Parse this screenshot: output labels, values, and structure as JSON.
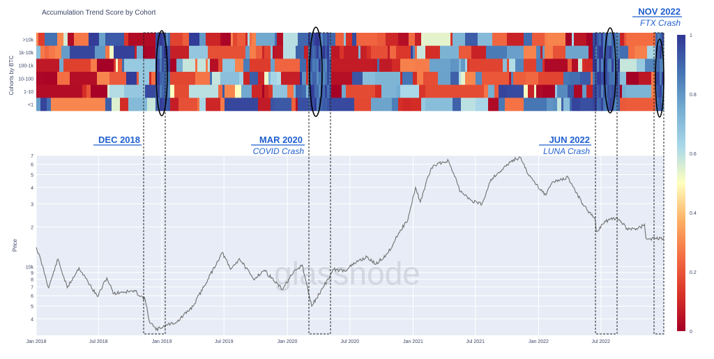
{
  "chart_data": [
    {
      "type": "heatmap",
      "title": "Accumulation Trend Score by Cohort",
      "ylabel": "Cohorts by BTC",
      "rows": [
        ">10k",
        "1k-10k",
        "100-1k",
        "10-100",
        "1-10",
        "<1"
      ],
      "x_range": [
        "2018-01-01",
        "2022-12-31"
      ],
      "colorbar": {
        "min": 0,
        "max": 1,
        "ticks": [
          "0",
          "0.2",
          "0.4",
          "0.6",
          "0.8",
          "1"
        ]
      },
      "colors": {
        "low": "#a50026",
        "mid": "#ffffbf",
        "high": "#313695"
      }
    },
    {
      "type": "line",
      "ylabel": "Price",
      "yscale": "log",
      "ylim": [
        3000,
        70000
      ],
      "y_tick_labels": [
        "10k",
        "9",
        "8",
        "7",
        "6",
        "5",
        "4",
        "2",
        "3",
        "4",
        "5",
        "6",
        "7"
      ],
      "x_tick_labels": [
        "Jan 2018",
        "Jul 2018",
        "Jan 2019",
        "Jul 2019",
        "Jan 2020",
        "Jul 2020",
        "Jan 2021",
        "Jul 2021",
        "Jan 2022",
        "Jul 2022"
      ],
      "series": [
        {
          "x": [
            "2018-01-01",
            "2018-01-15",
            "2018-02-06",
            "2018-03-05",
            "2018-04-01",
            "2018-05-05",
            "2018-06-28",
            "2018-07-25",
            "2018-08-15",
            "2018-09-05",
            "2018-10-15",
            "2018-11-14",
            "2018-11-25",
            "2018-12-15",
            "2019-01-15",
            "2019-02-15",
            "2019-04-02",
            "2019-05-15",
            "2019-06-26",
            "2019-07-20",
            "2019-08-15",
            "2019-09-25",
            "2019-10-26",
            "2019-12-17",
            "2020-01-15",
            "2020-02-13",
            "2020-03-12",
            "2020-04-15",
            "2020-05-15",
            "2020-06-15",
            "2020-07-27",
            "2020-08-20",
            "2020-09-15",
            "2020-10-21",
            "2020-11-20",
            "2020-12-17",
            "2021-01-08",
            "2021-01-22",
            "2021-02-21",
            "2021-03-13",
            "2021-04-14",
            "2021-05-19",
            "2021-06-22",
            "2021-07-20",
            "2021-08-15",
            "2021-09-07",
            "2021-10-20",
            "2021-11-10",
            "2021-12-04",
            "2022-01-22",
            "2022-02-10",
            "2022-03-28",
            "2022-05-09",
            "2022-06-15",
            "2022-06-18",
            "2022-07-15",
            "2022-08-15",
            "2022-09-15",
            "2022-10-15",
            "2022-11-05",
            "2022-11-09",
            "2022-11-20",
            "2022-12-31"
          ],
          "y": [
            14000,
            11000,
            6900,
            11400,
            6900,
            9800,
            5900,
            8200,
            6200,
            6400,
            6500,
            5600,
            3900,
            3300,
            3600,
            3800,
            5000,
            8000,
            12800,
            9500,
            11500,
            8000,
            9400,
            6700,
            8700,
            10300,
            5000,
            7000,
            9500,
            9300,
            11100,
            11800,
            10400,
            12800,
            18000,
            22800,
            40000,
            31000,
            55000,
            61000,
            63500,
            37000,
            31500,
            29800,
            46000,
            52000,
            65000,
            67500,
            49000,
            35000,
            44000,
            47500,
            30000,
            22500,
            18500,
            22000,
            23500,
            19500,
            19200,
            21000,
            16500,
            16200,
            16500
          ]
        }
      ]
    }
  ],
  "annotations": [
    {
      "title": "DEC 2018",
      "subtitle": ""
    },
    {
      "title": "MAR 2020",
      "subtitle": "COVID Crash"
    },
    {
      "title": "JUN 2022",
      "subtitle": "LUNA Crash"
    },
    {
      "title": "NOV 2022",
      "subtitle": "FTX Crash"
    }
  ],
  "watermark": "glassnode"
}
